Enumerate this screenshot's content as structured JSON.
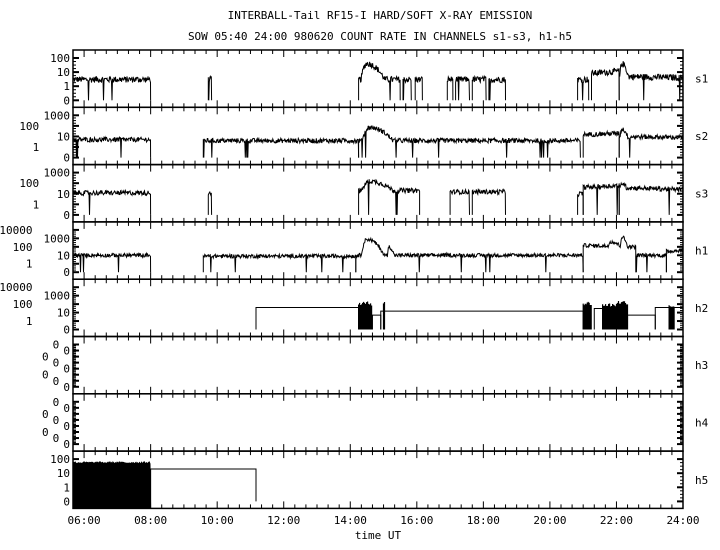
{
  "chart_data": {
    "type": "line",
    "title": "INTERBALL-Tail RF15-I HARD/SOFT X-RAY EMISSION",
    "subtitle": "SOW 05:40 24:00 980620  COUNT RATE IN CHANNELS s1-s3, h1-h5",
    "xlabel": "time UT",
    "xlim": [
      "05:40",
      "24:00"
    ],
    "x_ticks": [
      "06:00",
      "08:00",
      "10:00",
      "12:00",
      "14:00",
      "16:00",
      "18:00",
      "20:00",
      "22:00",
      "24:00"
    ],
    "y_scale": "log",
    "grid": false,
    "colors": {
      "line": "#000000",
      "background": "#ffffff"
    },
    "panels": [
      {
        "name": "s1",
        "yticks": [
          "0",
          "1",
          "10",
          "100"
        ],
        "noisy": [
          {
            "t": [
              "05:40",
              "08:00"
            ],
            "v": [
              3,
              3
            ]
          },
          {
            "t": [
              "09:44",
              "09:50"
            ],
            "v": [
              3,
              3
            ]
          },
          {
            "t": [
              "14:15",
              "15:30"
            ],
            "v": [
              3,
              3
            ]
          },
          {
            "t": [
              "15:35",
              "15:50"
            ],
            "v": [
              3,
              3
            ]
          },
          {
            "t": [
              "15:57",
              "16:10"
            ],
            "v": [
              3,
              3
            ]
          },
          {
            "t": [
              "16:55",
              "17:05"
            ],
            "v": [
              3,
              3
            ]
          },
          {
            "t": [
              "17:10",
              "17:35"
            ],
            "v": [
              3,
              3
            ]
          },
          {
            "t": [
              "17:40",
              "18:05"
            ],
            "v": [
              3,
              3
            ]
          },
          {
            "t": [
              "18:10",
              "18:40"
            ],
            "v": [
              3,
              3
            ]
          },
          {
            "t": [
              "20:50",
              "21:10"
            ],
            "v": [
              3,
              3
            ]
          },
          {
            "t": [
              "21:15",
              "22:05"
            ],
            "v": [
              8,
              12
            ]
          },
          {
            "t": [
              "22:05",
              "24:00"
            ],
            "v": [
              5,
              4
            ]
          }
        ],
        "peaks": [
          {
            "t": "14:30",
            "v": 40,
            "w": "00:20"
          },
          {
            "t": "22:10",
            "v": 40,
            "w": "00:08"
          }
        ]
      },
      {
        "name": "s2",
        "yticks": [
          "0",
          "1",
          "10",
          "100",
          "1000"
        ],
        "noisy": [
          {
            "t": [
              "05:40",
              "08:00"
            ],
            "v": [
              5,
              5
            ]
          },
          {
            "t": [
              "09:35",
              "14:15"
            ],
            "v": [
              4,
              4
            ]
          },
          {
            "t": [
              "14:15",
              "20:55"
            ],
            "v": [
              4,
              4
            ]
          },
          {
            "t": [
              "21:00",
              "22:05"
            ],
            "v": [
              15,
              20
            ]
          },
          {
            "t": [
              "22:05",
              "24:00"
            ],
            "v": [
              10,
              8
            ]
          }
        ],
        "peaks": [
          {
            "t": "14:35",
            "v": 70,
            "w": "00:25"
          },
          {
            "t": "22:10",
            "v": 50,
            "w": "00:08"
          }
        ]
      },
      {
        "name": "s3",
        "yticks": [
          "0",
          "1",
          "10",
          "100",
          "1000"
        ],
        "noisy": [
          {
            "t": [
              "05:40",
              "08:00"
            ],
            "v": [
              12,
              12
            ]
          },
          {
            "t": [
              "09:44",
              "09:50"
            ],
            "v": [
              12,
              12
            ]
          },
          {
            "t": [
              "14:15",
              "16:05"
            ],
            "v": [
              20,
              20
            ]
          },
          {
            "t": [
              "17:00",
              "17:35"
            ],
            "v": [
              15,
              15
            ]
          },
          {
            "t": [
              "17:40",
              "18:40"
            ],
            "v": [
              15,
              15
            ]
          },
          {
            "t": [
              "20:50",
              "21:00"
            ],
            "v": [
              10,
              10
            ]
          },
          {
            "t": [
              "21:00",
              "22:05"
            ],
            "v": [
              40,
              60
            ]
          },
          {
            "t": [
              "22:05",
              "24:00"
            ],
            "v": [
              40,
              25
            ]
          }
        ],
        "peaks": [
          {
            "t": "14:35",
            "v": 150,
            "w": "00:30"
          },
          {
            "t": "22:10",
            "v": 100,
            "w": "00:08"
          }
        ]
      },
      {
        "name": "h1",
        "yticks": [
          "0",
          "1",
          "10",
          "100",
          "1000",
          "10000"
        ],
        "noisy": [
          {
            "t": [
              "05:40",
              "08:00"
            ],
            "v": [
              10,
              10
            ]
          },
          {
            "t": [
              "09:35",
              "14:10"
            ],
            "v": [
              8,
              8
            ]
          },
          {
            "t": [
              "14:10",
              "21:00"
            ],
            "v": [
              10,
              10
            ]
          },
          {
            "t": [
              "21:00",
              "22:35"
            ],
            "v": [
              150,
              100
            ]
          },
          {
            "t": [
              "22:35",
              "23:30"
            ],
            "v": [
              10,
              10
            ]
          },
          {
            "t": [
              "23:30",
              "24:00"
            ],
            "v": [
              30,
              40
            ]
          }
        ],
        "peaks": [
          {
            "t": "14:30",
            "v": 800,
            "w": "00:15"
          },
          {
            "t": "15:10",
            "v": 100,
            "w": "00:06"
          },
          {
            "t": "21:50",
            "v": 400,
            "w": "00:15"
          },
          {
            "t": "22:10",
            "v": 1500,
            "w": "00:06"
          }
        ]
      },
      {
        "name": "h2",
        "yticks": [
          "0",
          "1",
          "10",
          "100",
          "1000",
          "10000"
        ],
        "steps": [
          {
            "t": [
              "11:10",
              "14:15"
            ],
            "v": 40
          },
          {
            "t": [
              "14:40",
              "14:55"
            ],
            "v": 5
          },
          {
            "t": [
              "14:55",
              "21:00"
            ],
            "v": 15
          },
          {
            "t": [
              "21:20",
              "21:35"
            ],
            "v": 30
          },
          {
            "t": [
              "22:20",
              "23:10"
            ],
            "v": 5
          },
          {
            "t": [
              "23:10",
              "24:00"
            ],
            "v": 40
          }
        ],
        "bursts": [
          {
            "t": [
              "14:15",
              "14:40"
            ],
            "v": 150
          },
          {
            "t": [
              "15:00",
              "15:02"
            ],
            "v": 250
          },
          {
            "t": [
              "21:00",
              "21:15"
            ],
            "v": 150
          },
          {
            "t": [
              "21:35",
              "22:00"
            ],
            "v": 100
          },
          {
            "t": [
              "22:00",
              "22:20"
            ],
            "v": 200
          },
          {
            "t": [
              "23:35",
              "23:45"
            ],
            "v": 80
          }
        ]
      },
      {
        "name": "h3",
        "yticks": [
          "0",
          "0",
          "0",
          "0",
          "0",
          "0",
          "0",
          "0"
        ]
      },
      {
        "name": "h4",
        "yticks": [
          "0",
          "0",
          "0",
          "0",
          "0",
          "0",
          "0",
          "0"
        ]
      },
      {
        "name": "h5",
        "yticks": [
          "0",
          "1",
          "10",
          "100"
        ],
        "filled": [
          {
            "t": [
              "05:40",
              "08:00"
            ],
            "v": 50
          }
        ],
        "steps": [
          {
            "t": [
              "08:00",
              "11:10"
            ],
            "v": 20
          }
        ]
      }
    ]
  }
}
